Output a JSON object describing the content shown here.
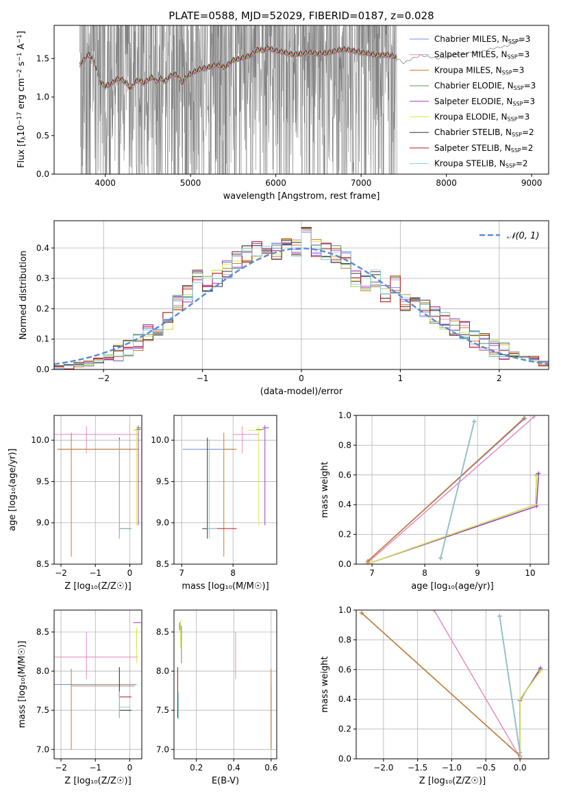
{
  "figure": {
    "title": "PLATE=0588, MJD=52029, FIBERID=0187, z=0.028",
    "colors": {
      "Chabrier MILES": "#6a8fd8",
      "Salpeter MILES": "#e889c0",
      "Kroupa MILES": "#c87a2a",
      "Chabrier ELODIE": "#4f9a4f",
      "Salpeter ELODIE": "#9a3ac8",
      "Kroupa ELODIE": "#d8e84a",
      "Chabrier STELIB": "#303030",
      "Salpeter STELIB": "#b81818",
      "Kroupa STELIB": "#86d0e0",
      "data": "#808080",
      "normal": "#5b8bd8",
      "grid": "#b0b0b0"
    }
  },
  "chart_data": [
    {
      "id": "spectrum",
      "type": "line",
      "title": "PLATE=0588, MJD=52029, FIBERID=0187, z=0.028",
      "xlabel": "wavelength [Angstrom, rest frame]",
      "ylabel_main": "Flux [f",
      "ylabel_sub1": "λ",
      "ylabel_mid": "10",
      "ylabel_sup1": "−17",
      "ylabel_rest": " erg cm",
      "ylabel_sup2": "−2",
      "ylabel_rest2": " s",
      "ylabel_sup3": "−1",
      "ylabel_rest3": " A",
      "ylabel_sup4": "−1",
      "ylabel_end": "]",
      "xlim": [
        3400,
        9200
      ],
      "ylim": [
        0,
        1.93
      ],
      "xticks": [
        "4000",
        "5000",
        "6000",
        "7000",
        "8000",
        "9000"
      ],
      "xtick_values": [
        4000,
        5000,
        6000,
        7000,
        8000,
        9000
      ],
      "yticks": [
        "0.0",
        "0.5",
        "1.0",
        "1.5"
      ],
      "ytick_values": [
        0,
        0.5,
        1.0,
        1.5
      ],
      "grid": false,
      "legend_position": "upper right",
      "data_range": [
        3700,
        7420
      ],
      "model_x": [
        3700,
        3750,
        3800,
        3850,
        3900,
        3950,
        4000,
        4050,
        4100,
        4150,
        4200,
        4250,
        4300,
        4350,
        4400,
        4450,
        4500,
        4550,
        4600,
        4650,
        4700,
        4750,
        4800,
        4850,
        4900,
        4950,
        5000,
        5100,
        5200,
        5300,
        5400,
        5500,
        5600,
        5700,
        5800,
        5850,
        5900,
        5950,
        6000,
        6100,
        6200,
        6300,
        6400,
        6500,
        6600,
        6700,
        6800,
        6900,
        7000,
        7100,
        7200,
        7300,
        7400,
        7500,
        7600,
        7700,
        7800,
        7900,
        8000,
        8100,
        8200,
        8300,
        8400,
        8500,
        8600,
        8700,
        8800,
        8900
      ],
      "model_y": [
        1.42,
        1.48,
        1.55,
        1.5,
        1.36,
        1.18,
        1.14,
        1.16,
        1.2,
        1.24,
        1.22,
        1.18,
        1.1,
        1.2,
        1.22,
        1.18,
        1.22,
        1.26,
        1.2,
        1.24,
        1.2,
        1.26,
        1.3,
        1.28,
        1.18,
        1.26,
        1.3,
        1.36,
        1.38,
        1.42,
        1.38,
        1.48,
        1.5,
        1.54,
        1.62,
        1.6,
        1.64,
        1.62,
        1.6,
        1.58,
        1.55,
        1.56,
        1.58,
        1.56,
        1.57,
        1.6,
        1.62,
        1.6,
        1.58,
        1.56,
        1.54,
        1.55,
        1.52,
        1.44,
        1.5,
        1.54,
        1.52,
        1.5,
        1.52,
        1.55,
        1.56,
        1.58,
        1.58,
        1.62,
        1.64,
        1.66,
        1.7,
        1.74
      ],
      "series": [
        {
          "name": "Chabrier MILES, N",
          "sub": "SSP",
          "suffix": "=3",
          "key": "Chabrier MILES"
        },
        {
          "name": "Salpeter MILES, N",
          "sub": "SSP",
          "suffix": "=3",
          "key": "Salpeter MILES"
        },
        {
          "name": "Kroupa MILES, N",
          "sub": "SSP",
          "suffix": "=3",
          "key": "Kroupa MILES"
        },
        {
          "name": "Chabrier ELODIE, N",
          "sub": "SSP",
          "suffix": "=3",
          "key": "Chabrier ELODIE"
        },
        {
          "name": "Salpeter ELODIE, N",
          "sub": "SSP",
          "suffix": "=3",
          "key": "Salpeter ELODIE"
        },
        {
          "name": "Kroupa ELODIE, N",
          "sub": "SSP",
          "suffix": "=3",
          "key": "Kroupa ELODIE"
        },
        {
          "name": "Chabrier STELIB, N",
          "sub": "SSP",
          "suffix": "=2",
          "key": "Chabrier STELIB"
        },
        {
          "name": "Salpeter STELIB, N",
          "sub": "SSP",
          "suffix": "=2",
          "key": "Salpeter STELIB"
        },
        {
          "name": "Kroupa STELIB, N",
          "sub": "SSP",
          "suffix": "=2",
          "key": "Kroupa STELIB"
        }
      ]
    },
    {
      "id": "residuals",
      "type": "line",
      "xlabel": "(data-model)/error",
      "ylabel": "Normed distribution",
      "xlim": [
        -2.5,
        2.5
      ],
      "ylim": [
        0,
        0.49
      ],
      "xticks": [
        "−2",
        "−1",
        "0",
        "1",
        "2"
      ],
      "xtick_values": [
        -2,
        -1,
        0,
        1,
        2
      ],
      "yticks": [
        "0.0",
        "0.1",
        "0.2",
        "0.3",
        "0.4"
      ],
      "ytick_values": [
        0,
        0.1,
        0.2,
        0.3,
        0.4
      ],
      "grid": true,
      "legend": "𝒩(0, 1)",
      "legend_position": "upper right",
      "bin_edges": [
        -2.5,
        -2.4,
        -2.3,
        -2.2,
        -2.1,
        -2.0,
        -1.9,
        -1.8,
        -1.7,
        -1.6,
        -1.5,
        -1.4,
        -1.3,
        -1.2,
        -1.1,
        -1.0,
        -0.9,
        -0.8,
        -0.7,
        -0.6,
        -0.5,
        -0.4,
        -0.3,
        -0.2,
        -0.1,
        0.0,
        0.1,
        0.2,
        0.3,
        0.4,
        0.5,
        0.6,
        0.7,
        0.8,
        0.9,
        1.0,
        1.1,
        1.2,
        1.3,
        1.4,
        1.5,
        1.6,
        1.7,
        1.8,
        1.9,
        2.0,
        2.1,
        2.2,
        2.3,
        2.4,
        2.5
      ],
      "hist_base": [
        0.005,
        0.008,
        0.015,
        0.02,
        0.03,
        0.04,
        0.055,
        0.07,
        0.09,
        0.12,
        0.14,
        0.16,
        0.22,
        0.25,
        0.3,
        0.28,
        0.3,
        0.33,
        0.36,
        0.38,
        0.4,
        0.41,
        0.39,
        0.42,
        0.4,
        0.44,
        0.4,
        0.39,
        0.38,
        0.36,
        0.3,
        0.28,
        0.3,
        0.25,
        0.28,
        0.22,
        0.22,
        0.2,
        0.18,
        0.16,
        0.14,
        0.13,
        0.1,
        0.09,
        0.07,
        0.06,
        0.05,
        0.045,
        0.035,
        0.02
      ]
    },
    {
      "id": "age-vs-Z",
      "type": "scatter",
      "xlabel": "Z [log₁₀(Z/Z☉)]",
      "ylabel": "age  [log₁₀(age/yr)]",
      "xlim": [
        -2.2,
        0.35
      ],
      "ylim": [
        8.5,
        10.3
      ],
      "xticks": [
        "−2",
        "−1",
        "0"
      ],
      "xtick_values": [
        -2,
        -1,
        0
      ],
      "yticks": [
        "8.5",
        "9.0",
        "9.5",
        "10.0"
      ],
      "ytick_values": [
        8.5,
        9.0,
        9.5,
        10.0
      ],
      "grid": true
    },
    {
      "id": "age-vs-mass",
      "type": "scatter",
      "xlabel": "mass [log₁₀(M/M☉)]",
      "xlim": [
        6.85,
        8.85
      ],
      "ylim": [
        8.5,
        10.3
      ],
      "xticks": [
        "7",
        "8"
      ],
      "xtick_values": [
        7,
        8
      ],
      "yticks": [
        "8.5",
        "9.0",
        "9.5",
        "10.0"
      ],
      "ytick_values": [
        8.5,
        9.0,
        9.5,
        10.0
      ],
      "grid": true
    },
    {
      "id": "weight-vs-age",
      "type": "line",
      "xlabel": "age  [log₁₀(age/yr)]",
      "ylabel": "mass weight",
      "xlim": [
        6.7,
        10.35
      ],
      "ylim": [
        0,
        1.0
      ],
      "xticks": [
        "7",
        "8",
        "9",
        "10"
      ],
      "xtick_values": [
        7,
        8,
        9,
        10
      ],
      "yticks": [
        "0.0",
        "0.2",
        "0.4",
        "0.6",
        "0.8",
        "1.0"
      ],
      "ytick_values": [
        0,
        0.2,
        0.4,
        0.6,
        0.8,
        1.0
      ],
      "grid": true,
      "series": [
        {
          "key": "Chabrier MILES",
          "x": [
            6.92,
            9.9
          ],
          "y": [
            0.02,
            0.98
          ]
        },
        {
          "key": "Salpeter MILES",
          "x": [
            6.92,
            10.07
          ],
          "y": [
            0.01,
            0.99
          ]
        },
        {
          "key": "Kroupa MILES",
          "x": [
            6.92,
            9.88
          ],
          "y": [
            0.02,
            0.98
          ]
        },
        {
          "key": "Chabrier ELODIE",
          "x": [
            6.9,
            10.1,
            10.12
          ],
          "y": [
            0.0,
            0.4,
            0.6
          ]
        },
        {
          "key": "Salpeter ELODIE",
          "x": [
            6.9,
            10.12,
            10.16
          ],
          "y": [
            0.0,
            0.39,
            0.61
          ]
        },
        {
          "key": "Kroupa ELODIE",
          "x": [
            6.9,
            10.1,
            10.12
          ],
          "y": [
            0.0,
            0.4,
            0.59
          ]
        },
        {
          "key": "Chabrier STELIB",
          "x": [
            8.3,
            8.94
          ],
          "y": [
            0.04,
            0.96
          ]
        },
        {
          "key": "Salpeter STELIB",
          "x": [
            8.3,
            8.94
          ],
          "y": [
            0.04,
            0.96
          ]
        },
        {
          "key": "Kroupa STELIB",
          "x": [
            8.3,
            8.94
          ],
          "y": [
            0.04,
            0.96
          ]
        }
      ]
    },
    {
      "id": "mass-vs-Z",
      "type": "scatter",
      "xlabel": "Z [log₁₀(Z/Z☉)]",
      "ylabel": "mass [log₁₀(M/M☉)]",
      "xlim": [
        -2.2,
        0.35
      ],
      "ylim": [
        6.88,
        8.78
      ],
      "xticks": [
        "−2",
        "−1",
        "0"
      ],
      "xtick_values": [
        -2,
        -1,
        0
      ],
      "yticks": [
        "7.0",
        "7.5",
        "8.0",
        "8.5"
      ],
      "ytick_values": [
        7.0,
        7.5,
        8.0,
        8.5
      ],
      "grid": true
    },
    {
      "id": "mass-vs-EBV",
      "type": "scatter",
      "xlabel": "E(B-V)",
      "xlim": [
        0.08,
        0.63
      ],
      "ylim": [
        6.88,
        8.78
      ],
      "xticks": [
        "0.2",
        "0.4",
        "0.6"
      ],
      "xtick_values": [
        0.2,
        0.4,
        0.6
      ],
      "yticks": [
        "7.0",
        "7.5",
        "8.0",
        "8.5"
      ],
      "ytick_values": [
        7.0,
        7.5,
        8.0,
        8.5
      ],
      "grid": true
    },
    {
      "id": "weight-vs-Z",
      "type": "line",
      "xlabel": "Z [log₁₀(Z/Z☉)]",
      "ylabel": "mass weight",
      "xlim": [
        -2.4,
        0.42
      ],
      "ylim": [
        0,
        1.0
      ],
      "xticks": [
        "−2.0",
        "−1.5",
        "−1.0",
        "−0.5",
        "0.0"
      ],
      "xtick_values": [
        -2.0,
        -1.5,
        -1.0,
        -0.5,
        0.0
      ],
      "yticks": [
        "0.0",
        "0.2",
        "0.4",
        "0.6",
        "0.8",
        "1.0"
      ],
      "ytick_values": [
        0,
        0.2,
        0.4,
        0.6,
        0.8,
        1.0
      ],
      "grid": true,
      "series": [
        {
          "key": "Chabrier MILES",
          "x": [
            -2.32,
            0.0
          ],
          "y": [
            0.98,
            0.02
          ]
        },
        {
          "key": "Salpeter MILES",
          "x": [
            -1.26,
            0.0
          ],
          "y": [
            1.0,
            0.01
          ]
        },
        {
          "key": "Kroupa MILES",
          "x": [
            -2.32,
            0.0
          ],
          "y": [
            0.98,
            0.02
          ]
        },
        {
          "key": "Chabrier ELODIE",
          "x": [
            0.0,
            0.0,
            0.3
          ],
          "y": [
            0.0,
            0.4,
            0.6
          ]
        },
        {
          "key": "Salpeter ELODIE",
          "x": [
            0.0,
            0.0,
            0.3
          ],
          "y": [
            0.0,
            0.39,
            0.61
          ]
        },
        {
          "key": "Kroupa ELODIE",
          "x": [
            0.0,
            0.0,
            0.3
          ],
          "y": [
            0.0,
            0.4,
            0.59
          ]
        },
        {
          "key": "Chabrier STELIB",
          "x": [
            -0.3,
            0.0
          ],
          "y": [
            0.96,
            0.04
          ]
        },
        {
          "key": "Salpeter STELIB",
          "x": [
            -0.3,
            0.0
          ],
          "y": [
            0.96,
            0.04
          ]
        },
        {
          "key": "Kroupa STELIB",
          "x": [
            -0.3,
            0.0
          ],
          "y": [
            0.96,
            0.04
          ]
        }
      ]
    }
  ]
}
